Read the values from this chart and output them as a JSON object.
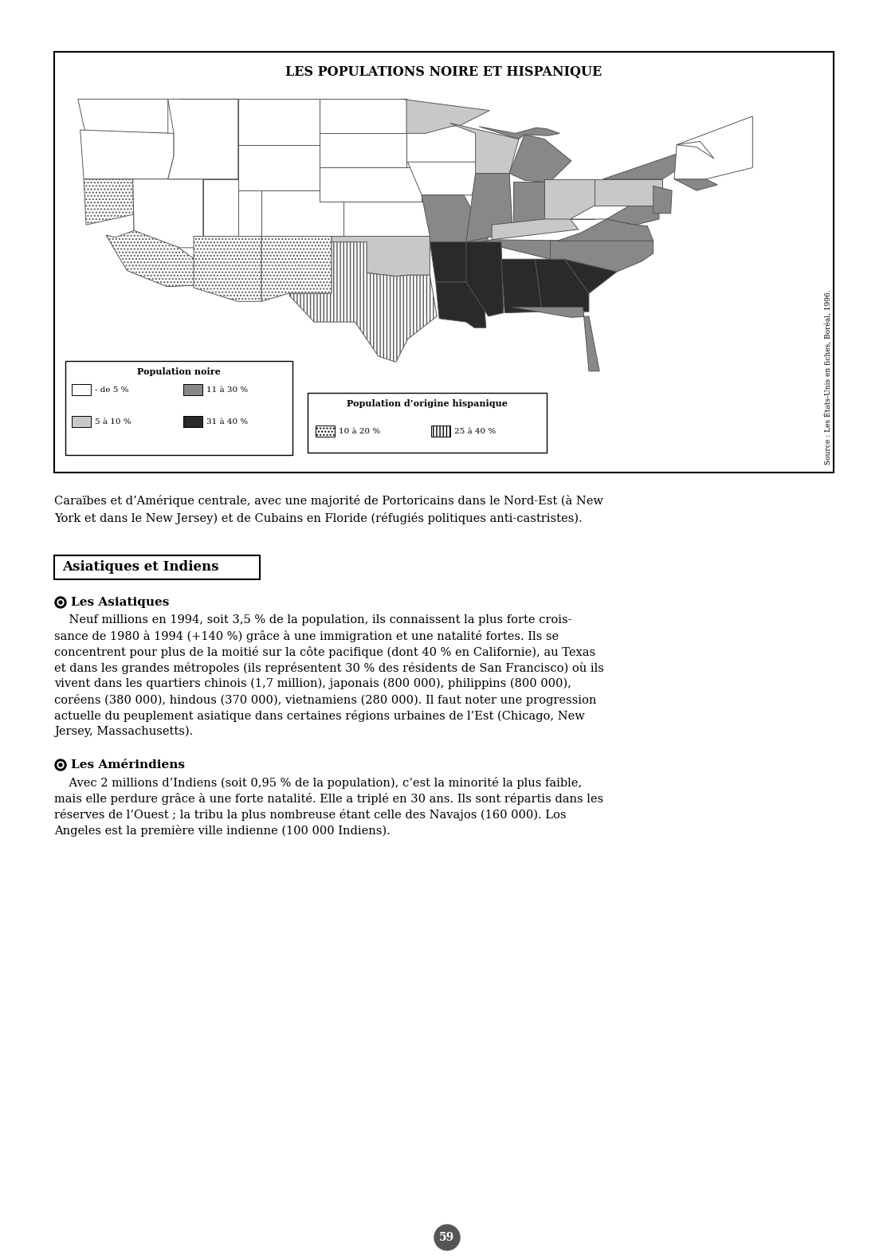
{
  "title": "LES POPULATIONS NOIRE ET HISPANIQUE",
  "source_text": "Source : Les États-Unis en fiches, Boréal, 1996.",
  "legend_black_title": "Population noire",
  "legend_hisp_title": "Population d’origine hispanique",
  "legend_black_items": [
    {
      "label": "- de 5 %",
      "color": "#ffffff",
      "hatch": null
    },
    {
      "label": "11 à 30 %",
      "color": "#888888",
      "hatch": null
    },
    {
      "label": "5 à 10 %",
      "color": "#c8c8c8",
      "hatch": null
    },
    {
      "label": "31 à 40 %",
      "color": "#2a2a2a",
      "hatch": null
    }
  ],
  "legend_hisp_items": [
    {
      "label": "10 à 20 %",
      "hatch": "...."
    },
    {
      "label": "25 à 40 %",
      "hatch": "||||"
    }
  ],
  "intro_lines": [
    "Caraïbes et d’Amérique centrale, avec une majorité de Portoricains dans le Nord-Est (à New",
    "York et dans le New Jersey) et de Cubains en Floride (réfugiés politiques anti-castristes)."
  ],
  "section_title": "Asiatiques et Indiens",
  "sub1_title": "Les Asiatiques",
  "sub1_body": [
    "    Neuf millions en 1994, soit 3,5 % de la population, ils connaissent la plus forte crois-",
    "sance de 1980 à 1994 (+140 %) grâce à une immigration et une natalité fortes. Ils se",
    "concentrent pour plus de la moitié sur la côte pacifique (dont 40 % en Californie), au Texas",
    "et dans les grandes métropoles (ils représentent 30 % des résidents de San Francisco) où ils",
    "vivent dans les quartiers chinois (1,7 million), japonais (800 000), philippins (800 000),",
    "coréens (380 000), hindous (370 000), vietnamiens (280 000). Il faut noter une progression",
    "actuelle du peuplement asiatique dans certaines régions urbaines de l’Est (Chicago, New",
    "Jersey, Massachusetts)."
  ],
  "sub2_title": "Les Amérindiens",
  "sub2_body": [
    "    Avec 2 millions d’Indiens (soit 0,95 % de la population), c’est la minorité la plus faible,",
    "mais elle perdure grâce à une forte natalité. Elle a triplé en 30 ans. Ils sont répartis dans les",
    "réserves de l’Ouest ; la tribu la plus nombreuse étant celle des Navajos (160 000). Los",
    "Angeles est la première ville indienne (100 000 Indiens)."
  ],
  "page_number": "59",
  "bg_color": "#f0eeea",
  "page_bg": "#ffffff",
  "c_white": "#ffffff",
  "c_lgray": "#c8c8c8",
  "c_mgray": "#888888",
  "c_dgray": "#2a2a2a",
  "h_dots": "....",
  "h_vert": "||||"
}
